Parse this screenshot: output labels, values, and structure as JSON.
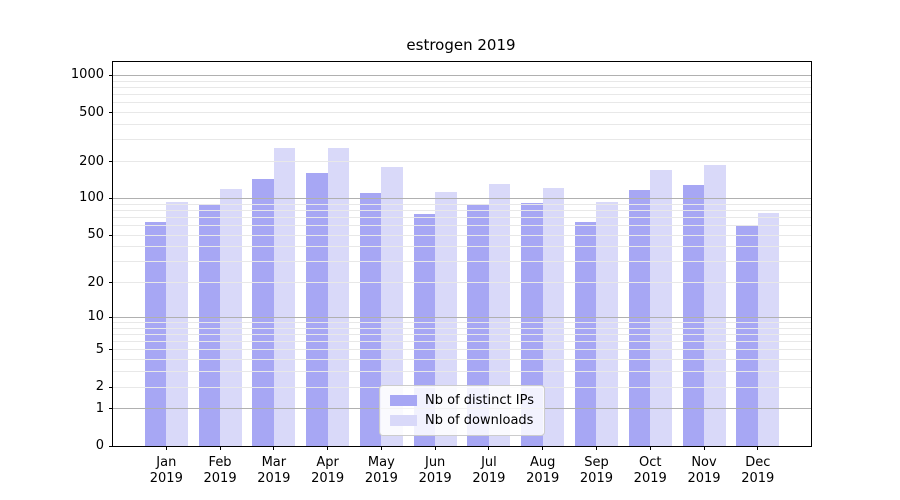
{
  "chart_data": {
    "type": "bar",
    "title": "estrogen 2019",
    "yscale": "log1p",
    "categories": [
      "Jan 2019",
      "Feb 2019",
      "Mar 2019",
      "Apr 2019",
      "May 2019",
      "Jun 2019",
      "Jul 2019",
      "Aug 2019",
      "Sep 2019",
      "Oct 2019",
      "Nov 2019",
      "Dec 2019"
    ],
    "series": [
      {
        "name": "Nb of distinct IPs",
        "color": "#a7a7f4",
        "values": [
          64,
          88,
          145,
          161,
          110,
          75,
          88,
          91,
          64,
          118,
          128,
          60
        ]
      },
      {
        "name": "Nb of downloads",
        "color": "#d9d9f9",
        "values": [
          94,
          119,
          260,
          257,
          179,
          114,
          131,
          122,
          94,
          170,
          189,
          76
        ]
      }
    ],
    "y_ticks": [
      0,
      1,
      2,
      5,
      10,
      20,
      50,
      100,
      200,
      500,
      1000
    ],
    "y_major_gridlines": [
      1,
      10,
      100,
      1000
    ],
    "ylim": [
      0,
      1285
    ],
    "xlabel": "",
    "ylabel": "",
    "grid": true,
    "legend_position": "lower center"
  },
  "colors": {
    "bar_ips": "#a7a7f4",
    "bar_downloads": "#d9d9f9",
    "major_grid": "#b0b0b0",
    "minor_grid": "#e8e8e8",
    "spine": "#000000",
    "background": "#ffffff"
  }
}
